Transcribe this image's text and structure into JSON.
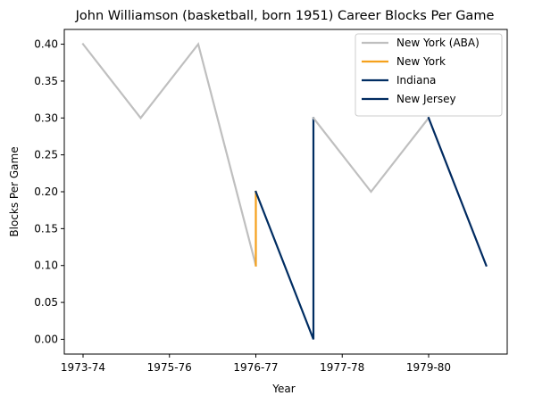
{
  "chart_data": {
    "type": "line",
    "title": "John Williamson (basketball, born 1951) Career Blocks Per Game",
    "xlabel": "Year",
    "ylabel": "Blocks Per Game",
    "x_ticks": [
      "1973-74",
      "1975-76",
      "1976-77",
      "1977-78",
      "1979-80"
    ],
    "y_ticks": [
      "0.00",
      "0.05",
      "0.10",
      "0.15",
      "0.20",
      "0.25",
      "0.30",
      "0.35",
      "0.40"
    ],
    "ylim": [
      -0.02,
      0.42
    ],
    "grid": false,
    "legend_position": "top-right",
    "series": [
      {
        "name": "New York (ABA)",
        "color": "#bfbfbf",
        "points": [
          {
            "x": 1973.5,
            "y": 0.4
          },
          {
            "x": 1974.5,
            "y": 0.3
          },
          {
            "x": 1975.5,
            "y": 0.4
          },
          {
            "x": 1976.5,
            "y": 0.1
          }
        ]
      },
      {
        "name": "New York",
        "color": "#f5a11c",
        "points": [
          {
            "x": 1976.5,
            "y": 0.1
          },
          {
            "x": 1976.5,
            "y": 0.2
          }
        ]
      },
      {
        "name": "Indiana",
        "color": "#002d62",
        "points": [
          {
            "x": 1976.5,
            "y": 0.2
          },
          {
            "x": 1977.5,
            "y": 0.0
          },
          {
            "x": 1977.5,
            "y": 0.3
          }
        ]
      },
      {
        "name": "New York (ABA)",
        "color": "#bfbfbf",
        "legend": false,
        "points": [
          {
            "x": 1977.5,
            "y": 0.3
          },
          {
            "x": 1978.5,
            "y": 0.2
          },
          {
            "x": 1979.5,
            "y": 0.3
          }
        ]
      },
      {
        "name": "New Jersey",
        "color": "#002a60",
        "points": [
          {
            "x": 1979.5,
            "y": 0.3
          },
          {
            "x": 1980.5,
            "y": 0.1
          }
        ]
      }
    ]
  }
}
